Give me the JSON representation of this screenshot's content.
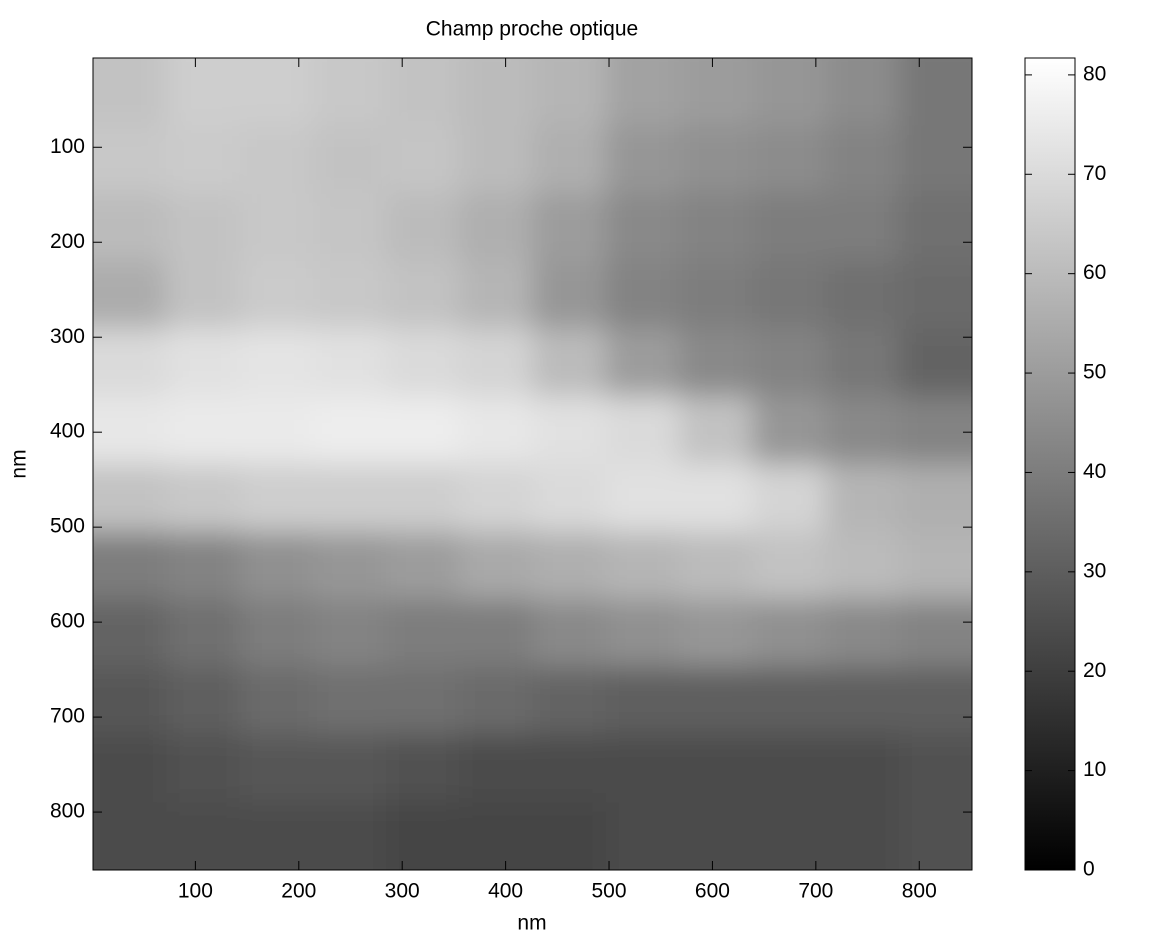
{
  "chart_data": {
    "type": "heatmap",
    "title": "Champ proche optique",
    "x_label": "nm",
    "y_label": "nm",
    "values": [
      [
        62,
        66,
        66,
        64,
        62,
        60,
        58,
        52,
        50,
        48,
        45,
        38
      ],
      [
        64,
        65,
        64,
        62,
        63,
        60,
        56,
        48,
        46,
        45,
        42,
        38
      ],
      [
        60,
        62,
        64,
        63,
        60,
        56,
        50,
        44,
        42,
        40,
        40,
        36
      ],
      [
        55,
        62,
        65,
        64,
        62,
        58,
        48,
        42,
        40,
        38,
        36,
        34
      ],
      [
        70,
        72,
        73,
        72,
        70,
        68,
        60,
        50,
        44,
        42,
        38,
        32
      ],
      [
        74,
        75,
        75,
        76,
        76,
        74,
        72,
        70,
        62,
        48,
        44,
        42
      ],
      [
        62,
        64,
        66,
        66,
        66,
        68,
        70,
        72,
        72,
        68,
        58,
        56
      ],
      [
        40,
        42,
        46,
        48,
        50,
        54,
        56,
        58,
        60,
        62,
        60,
        58
      ],
      [
        32,
        36,
        40,
        42,
        40,
        40,
        44,
        46,
        48,
        46,
        44,
        42
      ],
      [
        28,
        30,
        34,
        36,
        36,
        34,
        32,
        30,
        30,
        30,
        30,
        30
      ],
      [
        24,
        26,
        28,
        28,
        26,
        24,
        24,
        24,
        24,
        24,
        24,
        26
      ],
      [
        24,
        24,
        24,
        24,
        22,
        22,
        22,
        24,
        24,
        24,
        24,
        26
      ]
    ],
    "xlim": [
      1,
      851
    ],
    "ylim": [
      6,
      861
    ],
    "xticks": [
      100,
      200,
      300,
      400,
      500,
      600,
      700,
      800
    ],
    "yticks": [
      100,
      200,
      300,
      400,
      500,
      600,
      700,
      800
    ],
    "y_reversed": true,
    "colormap": "gray",
    "clim": [
      0,
      81.7
    ],
    "cticks": [
      0,
      10,
      20,
      30,
      40,
      50,
      60,
      70,
      80
    ]
  }
}
